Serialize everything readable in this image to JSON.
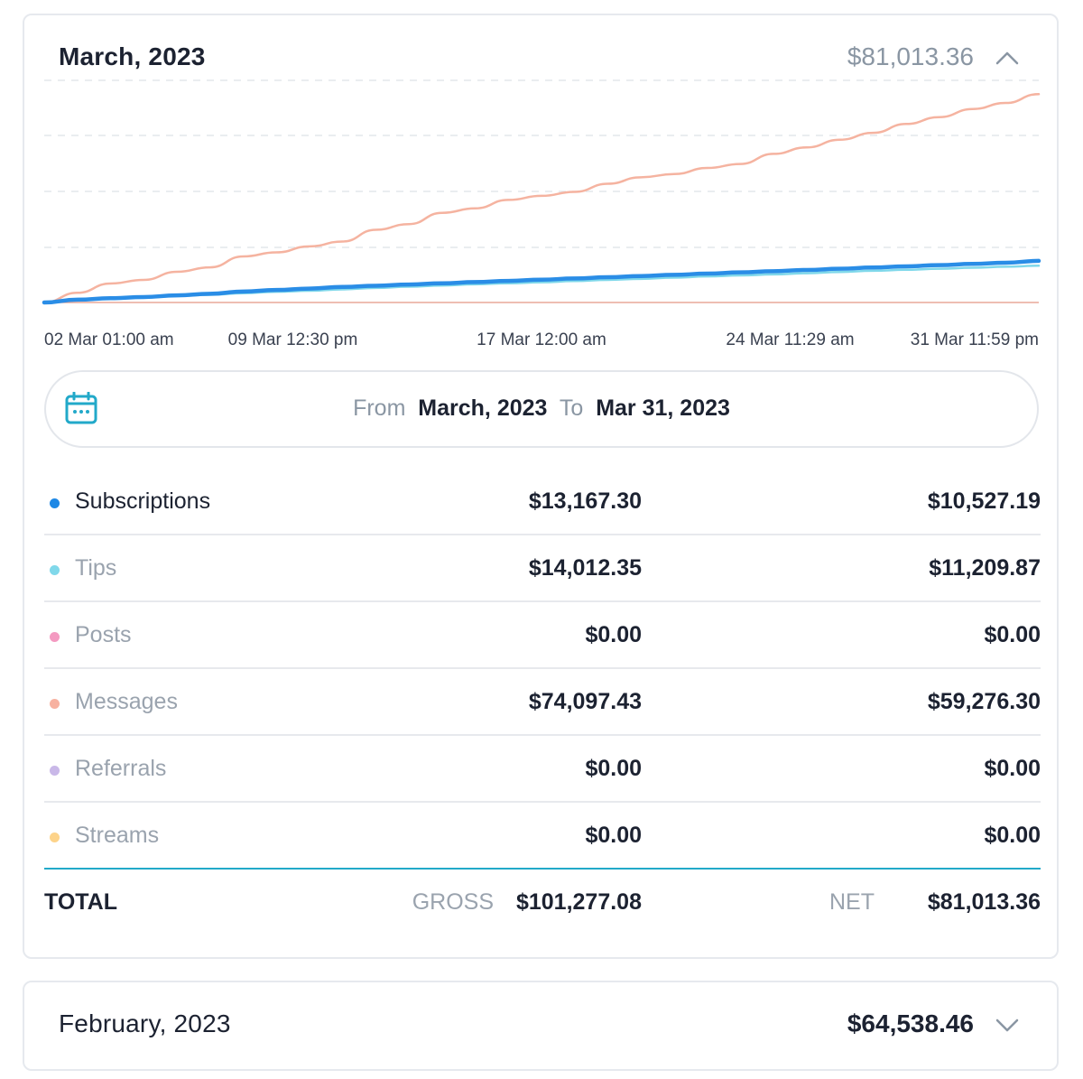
{
  "march": {
    "title": "March, 2023",
    "total": "$81,013.36",
    "expanded": true
  },
  "chart_data": {
    "type": "line",
    "x_labels": [
      "02 Mar 01:00 am",
      "09 Mar 12:30 pm",
      "17 Mar 12:00 am",
      "24 Mar 11:29 am",
      "31 Mar 11:59 pm"
    ],
    "days": [
      1,
      2,
      3,
      4,
      5,
      6,
      7,
      8,
      9,
      10,
      11,
      12,
      13,
      14,
      15,
      16,
      17,
      18,
      19,
      20,
      21,
      22,
      23,
      24,
      25,
      26,
      27,
      28,
      29,
      30,
      31
    ],
    "grid": "dashed-horizontal",
    "series": [
      {
        "color": "#f5b3a0",
        "width": 2.5,
        "values": [
          0,
          2400,
          4700,
          5600,
          7600,
          8700,
          11400,
          12400,
          13900,
          15100,
          18000,
          19400,
          22200,
          23300,
          25400,
          26400,
          27400,
          29400,
          31000,
          31800,
          33300,
          34300,
          36800,
          38400,
          40300,
          42000,
          44200,
          45900,
          47900,
          49400,
          51600
        ]
      },
      {
        "color": "#80d8ea",
        "width": 2.5,
        "values": [
          0,
          620,
          900,
          1200,
          1600,
          1900,
          2300,
          2650,
          2900,
          3250,
          3600,
          3900,
          4200,
          4500,
          4750,
          5000,
          5300,
          5600,
          5850,
          6150,
          6450,
          6700,
          6950,
          7250,
          7550,
          7850,
          8100,
          8350,
          8600,
          8850,
          9100
        ]
      },
      {
        "color": "#2a8de6",
        "width": 4.5,
        "values": [
          0,
          700,
          1050,
          1350,
          1750,
          2150,
          2700,
          3100,
          3450,
          3850,
          4150,
          4450,
          4750,
          5050,
          5350,
          5650,
          5950,
          6250,
          6550,
          6850,
          7150,
          7450,
          7750,
          8050,
          8350,
          8650,
          8950,
          9250,
          9550,
          9850,
          10300
        ]
      }
    ]
  },
  "range": {
    "from_label": "From",
    "from_value": "March, 2023",
    "to_label": "To",
    "to_value": "Mar 31, 2023"
  },
  "rows": [
    {
      "label": "Subscriptions",
      "gross": "$13,167.30",
      "net": "$10,527.19",
      "color": "#1e88e5"
    },
    {
      "label": "Tips",
      "gross": "$14,012.35",
      "net": "$11,209.87",
      "color": "#80d8ea"
    },
    {
      "label": "Posts",
      "gross": "$0.00",
      "net": "$0.00",
      "color": "#f49ac1"
    },
    {
      "label": "Messages",
      "gross": "$74,097.43",
      "net": "$59,276.30",
      "color": "#f7b1a0"
    },
    {
      "label": "Referrals",
      "gross": "$0.00",
      "net": "$0.00",
      "color": "#c9b8e8"
    },
    {
      "label": "Streams",
      "gross": "$0.00",
      "net": "$0.00",
      "color": "#fdd38a"
    }
  ],
  "total": {
    "label": "TOTAL",
    "gross_label": "GROSS",
    "gross_value": "$101,277.08",
    "net_label": "NET",
    "net_value": "$81,013.36"
  },
  "february": {
    "title": "February, 2023",
    "total": "$64,538.46",
    "expanded": false
  },
  "icons": {
    "collapse": "chevron-up-icon",
    "expand": "chevron-down-icon",
    "calendar": "calendar-icon"
  },
  "colors": {
    "accent": "#22a9c9",
    "divider": "#e7e9ed"
  }
}
